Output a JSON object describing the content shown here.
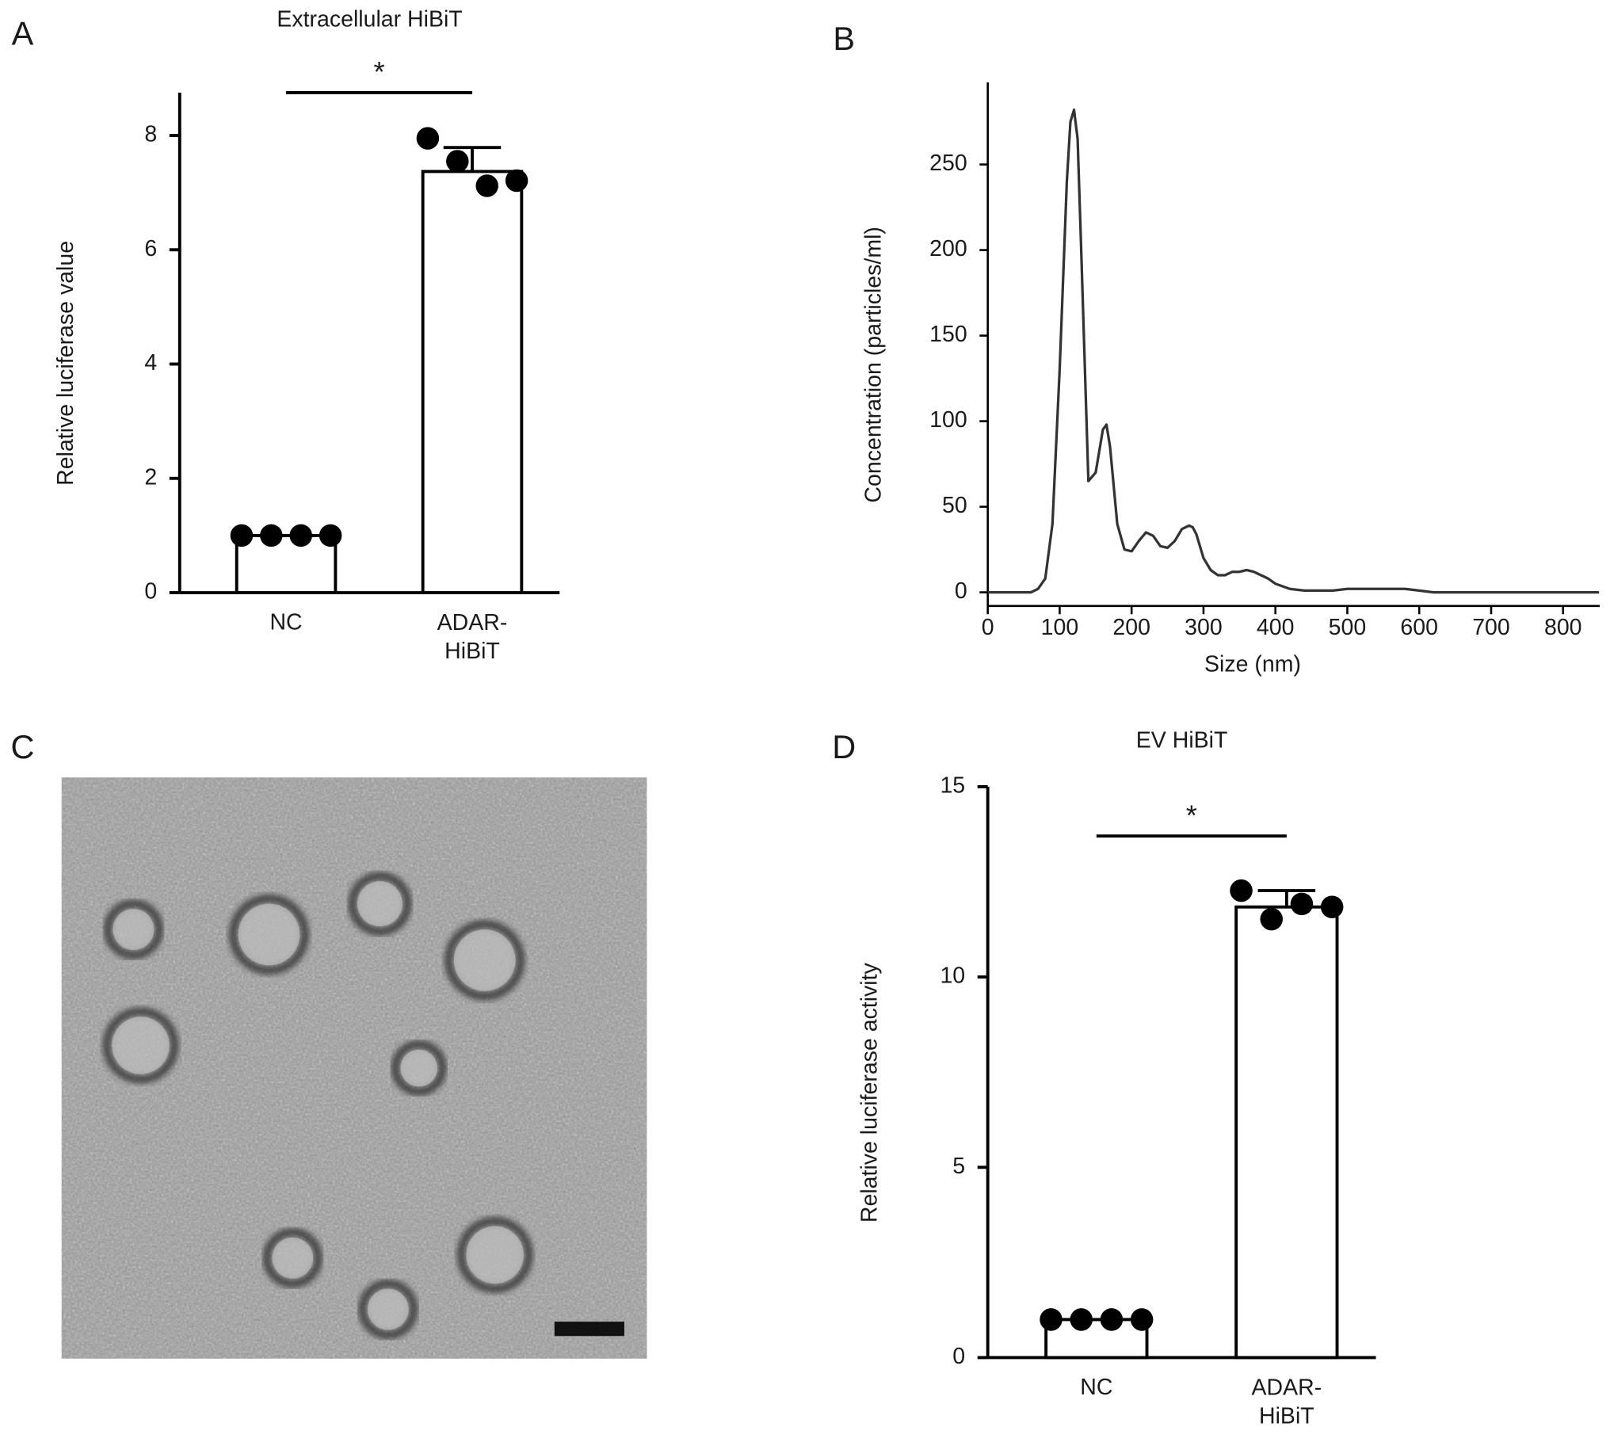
{
  "chart_data": [
    {
      "type": "bar",
      "panel": "A",
      "title": "Extracellular HiBiT",
      "y_label": "Relative luciferase value",
      "categories": [
        "NC",
        "ADAR-\nHiBiT"
      ],
      "values": [
        1,
        7.37
      ],
      "errors": [
        0,
        0.42
      ],
      "points": [
        [
          1,
          1,
          1,
          1
        ],
        [
          7.95,
          7.55,
          7.12,
          7.21
        ]
      ],
      "color": "#ffffff",
      "edgecolor": "#000000",
      "ylim": [
        0,
        8.75
      ],
      "yticks": [
        0,
        2,
        4,
        6,
        8
      ],
      "annotation": "*"
    },
    {
      "type": "line",
      "panel": "B",
      "x_label": "Size (nm)",
      "y_label": "Concentration (particles/ml)",
      "x": [
        0,
        20,
        40,
        60,
        70,
        80,
        90,
        100,
        110,
        115,
        120,
        125,
        130,
        140,
        150,
        160,
        165,
        170,
        180,
        190,
        200,
        210,
        220,
        230,
        240,
        250,
        260,
        270,
        280,
        285,
        290,
        300,
        310,
        320,
        330,
        340,
        350,
        360,
        370,
        380,
        390,
        400,
        420,
        440,
        460,
        480,
        500,
        520,
        540,
        560,
        580,
        600,
        620,
        640,
        660,
        680,
        700,
        750,
        800,
        850
      ],
      "values": [
        0,
        0,
        0,
        0,
        2,
        8,
        40,
        130,
        240,
        275,
        282,
        265,
        200,
        65,
        70,
        95,
        98,
        85,
        40,
        25,
        24,
        30,
        35,
        33,
        27,
        26,
        30,
        37,
        39,
        38,
        34,
        20,
        13,
        10,
        10,
        12,
        12,
        13,
        12,
        10,
        8,
        5,
        2,
        1,
        1,
        1,
        2,
        2,
        2,
        2,
        2,
        1,
        0,
        0,
        0,
        0,
        0,
        0,
        0,
        0
      ],
      "color": "#333333",
      "xlim": [
        0,
        851
      ],
      "xticks": [
        0,
        100,
        200,
        300,
        400,
        500,
        600,
        700,
        800
      ],
      "ylim": [
        -8,
        298
      ],
      "yticks": [
        0,
        50,
        100,
        150,
        200,
        250
      ]
    },
    {
      "type": "image",
      "panel": "C"
    },
    {
      "type": "bar",
      "panel": "D",
      "title": "EV HiBiT",
      "y_label": "Relative luciferase activity",
      "categories": [
        "NC",
        "ADAR-\nHiBiT"
      ],
      "values": [
        1,
        11.84
      ],
      "errors": [
        0,
        0.43
      ],
      "points": [
        [
          1,
          1,
          1,
          1
        ],
        [
          12.27,
          11.52,
          11.92,
          11.84
        ]
      ],
      "color": "#ffffff",
      "edgecolor": "#000000",
      "ylim": [
        0,
        15
      ],
      "yticks": [
        0,
        5,
        10,
        15
      ],
      "annotation": "*"
    }
  ]
}
